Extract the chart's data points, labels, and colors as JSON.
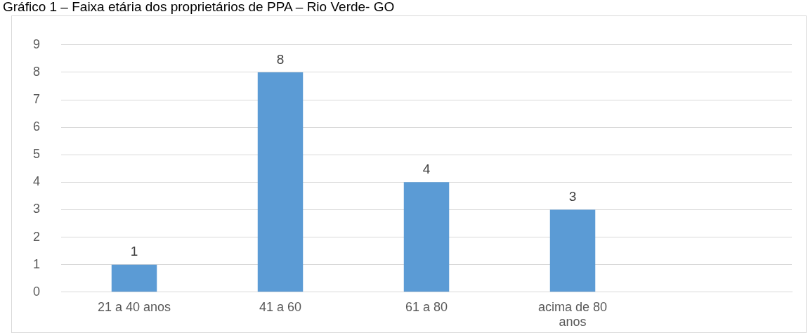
{
  "chart_data": {
    "type": "bar",
    "title": "Gráfico 1 – Faixa etária dos proprietários de PPA – Rio Verde- GO",
    "categories": [
      "21 a 40 anos",
      "41 a 60",
      "61 a 80",
      "acima de 80 anos",
      null
    ],
    "values": [
      1,
      8,
      4,
      3,
      null
    ],
    "color": "#5b9bd5",
    "ylim": [
      0,
      9
    ],
    "yticks": [
      0,
      1,
      2,
      3,
      4,
      5,
      6,
      7,
      8,
      9
    ],
    "grid": "y",
    "data_labels": true,
    "legend": false
  }
}
